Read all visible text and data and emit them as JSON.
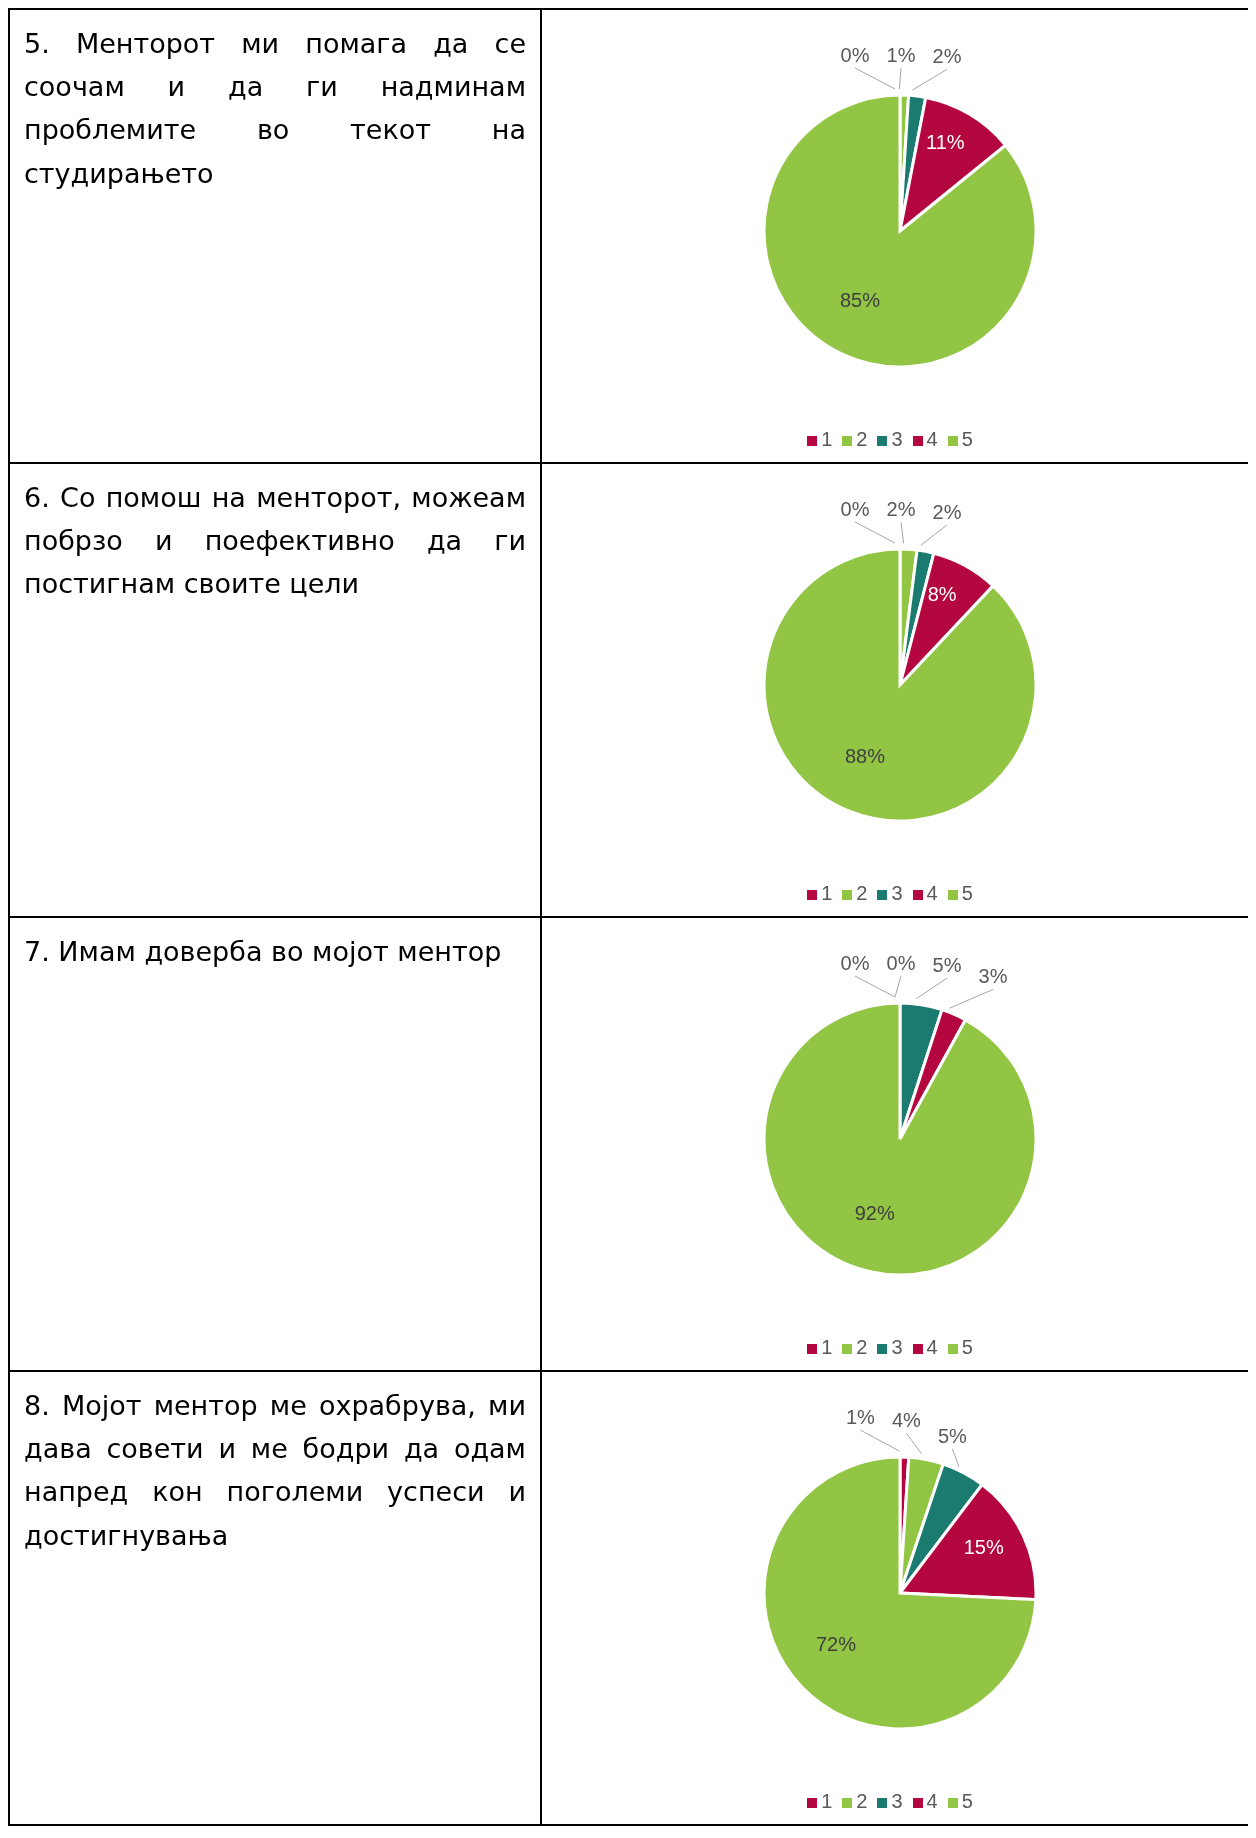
{
  "chart_data": [
    {
      "type": "pie",
      "title": "5. Менторот ми помага да се соочам и да ги надминам проблемите во текот на студирањето",
      "categories": [
        "1",
        "2",
        "3",
        "4",
        "5"
      ],
      "values": [
        0,
        1,
        2,
        11,
        85
      ],
      "value_labels": [
        "0%",
        "1%",
        "2%",
        "11%",
        "85%"
      ],
      "colors": [
        "#b5073f",
        "#92c544",
        "#1b7b70",
        "#b5073f",
        "#92c544"
      ],
      "data_labels": true,
      "legend": "bottom"
    },
    {
      "type": "pie",
      "title": "6. Со помош на менторот, можеам побрзо и поефективно да ги постигнам своите цели",
      "categories": [
        "1",
        "2",
        "3",
        "4",
        "5"
      ],
      "values": [
        0,
        2,
        2,
        8,
        88
      ],
      "value_labels": [
        "0%",
        "2%",
        "2%",
        "8%",
        "88%"
      ],
      "colors": [
        "#b5073f",
        "#92c544",
        "#1b7b70",
        "#b5073f",
        "#92c544"
      ],
      "data_labels": true,
      "legend": "bottom"
    },
    {
      "type": "pie",
      "title": "7. Имам доверба во мојот ментор",
      "categories": [
        "1",
        "2",
        "3",
        "4",
        "5"
      ],
      "values": [
        0,
        0,
        5,
        3,
        92
      ],
      "value_labels": [
        "0%",
        "0%",
        "5%",
        "3%",
        "92%"
      ],
      "colors": [
        "#b5073f",
        "#92c544",
        "#1b7b70",
        "#b5073f",
        "#92c544"
      ],
      "data_labels": true,
      "legend": "bottom"
    },
    {
      "type": "pie",
      "title": "8. Мојот ментор ме охрабрува, ми дава совети и ме бодри да одам напред кон поголеми успеси и достигнувања",
      "categories": [
        "1",
        "2",
        "3",
        "4",
        "5"
      ],
      "values": [
        1,
        4,
        5,
        15,
        72
      ],
      "value_labels": [
        "1%",
        "4%",
        "5%",
        "15%",
        "72%"
      ],
      "colors": [
        "#b5073f",
        "#92c544",
        "#1b7b70",
        "#b5073f",
        "#92c544"
      ],
      "data_labels": true,
      "legend": "bottom"
    }
  ]
}
